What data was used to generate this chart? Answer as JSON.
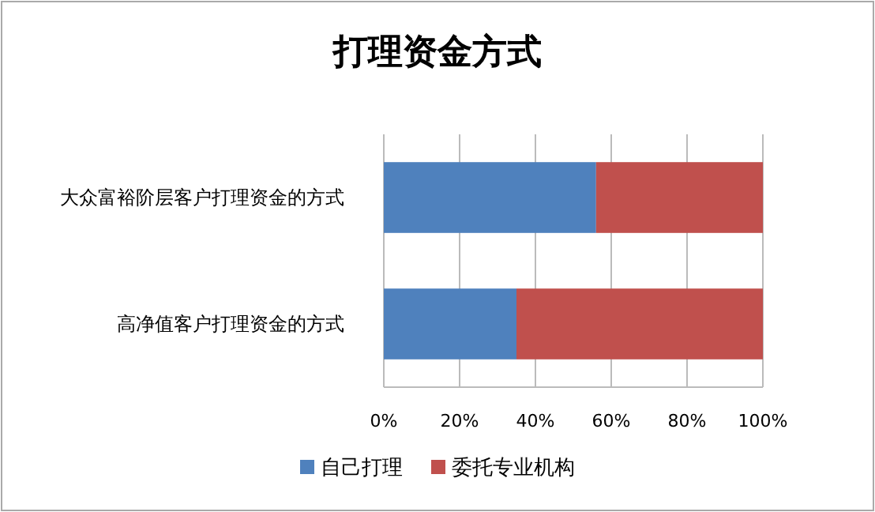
{
  "chart_data": {
    "type": "bar",
    "title": "打理资金方式",
    "orientation": "horizontal",
    "stacked": true,
    "categories": [
      "大众富裕阶层客户打理资金的方式",
      "高净值客户打理资金的方式"
    ],
    "series": [
      {
        "name": "自己打理",
        "color": "#4f81bd",
        "values": [
          56,
          35
        ]
      },
      {
        "name": "委托专业机构",
        "color": "#c0504d",
        "values": [
          44,
          65
        ]
      }
    ],
    "xlim": [
      0,
      100
    ],
    "xticks": [
      {
        "value": 0,
        "label": "0%"
      },
      {
        "value": 20,
        "label": "20%"
      },
      {
        "value": 40,
        "label": "40%"
      },
      {
        "value": 60,
        "label": "60%"
      },
      {
        "value": 80,
        "label": "80%"
      },
      {
        "value": 100,
        "label": "100%"
      }
    ],
    "grid": "x",
    "legend": "bottom"
  }
}
